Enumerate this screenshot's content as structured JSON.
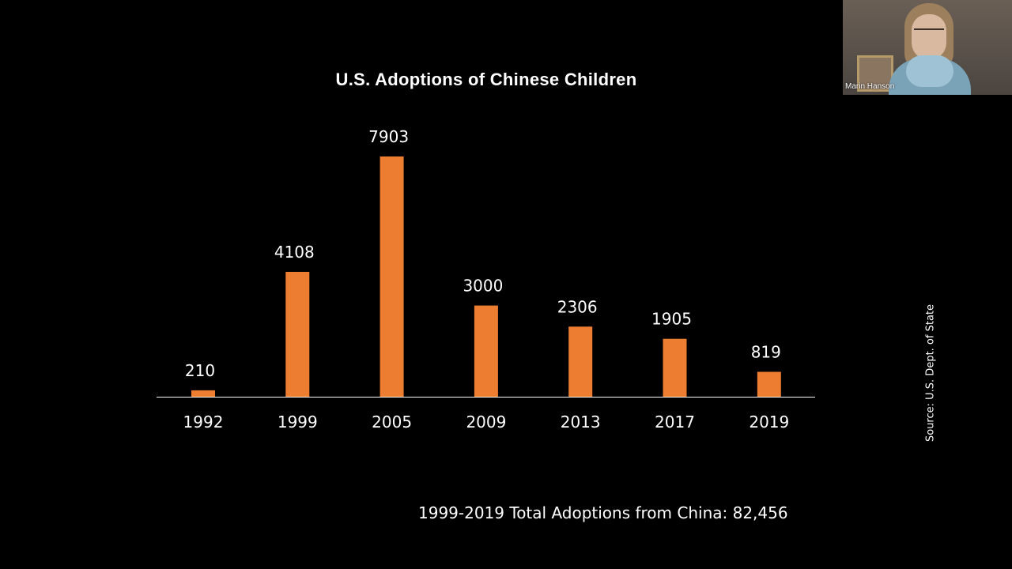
{
  "chart_data": {
    "type": "bar",
    "title": "U.S. Adoptions of Chinese Children",
    "categories": [
      "1992",
      "1999",
      "2005",
      "2009",
      "2013",
      "2017",
      "2019"
    ],
    "values": [
      210,
      4108,
      7903,
      3000,
      2306,
      1905,
      819
    ],
    "xlabel": "",
    "ylabel": "",
    "ylim": [
      0,
      7903
    ],
    "grid": false,
    "legend": "none",
    "bar_color": "#ED7D31",
    "annotations": {
      "total": "1999-2019 Total Adoptions from China: 82,456",
      "source": "Source: U.S. Dept. of State"
    }
  },
  "video_tile": {
    "participant_name": "Marin Hanson"
  },
  "colors": {
    "background": "#000000",
    "text": "#ffffff",
    "bar": "#ED7D31"
  }
}
